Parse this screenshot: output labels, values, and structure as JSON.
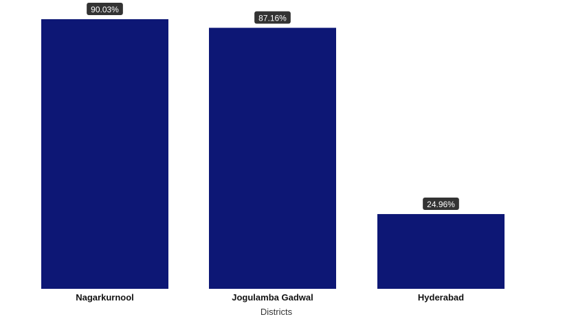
{
  "chart_data": {
    "type": "bar",
    "categories": [
      "Nagarkurnool",
      "Jogulamba Gadwal",
      "Hyderabad"
    ],
    "values": [
      90.03,
      87.16,
      24.96
    ],
    "data_labels": [
      "90.03%",
      "87.16%",
      "24.96%"
    ],
    "xlabel": "Districts",
    "ylabel": "",
    "ylim": [
      0,
      90.03
    ],
    "grid": false,
    "legend": "none",
    "bar_color": "#0d1775",
    "label_bg_color": "#333333"
  }
}
